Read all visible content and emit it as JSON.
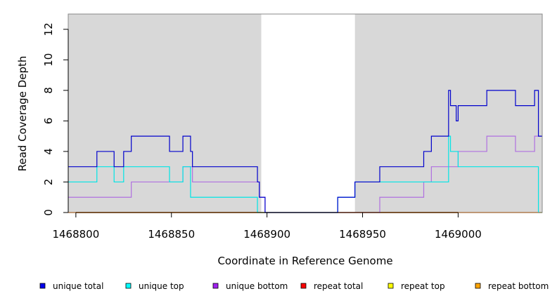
{
  "chart_data": {
    "type": "line",
    "title": "",
    "xlabel": "Coordinate in Reference Genome",
    "ylabel": "Read Coverage Depth",
    "xlim": [
      1468796,
      1469044
    ],
    "ylim": [
      0,
      13
    ],
    "x_ticks": [
      1468800,
      1468850,
      1468900,
      1468950,
      1469000
    ],
    "x_tick_labels": [
      "1468800",
      "1468850",
      "1468900",
      "1468950",
      "1469000"
    ],
    "y_ticks": [
      0,
      2,
      4,
      6,
      8,
      10,
      12
    ],
    "y_tick_labels": [
      "0",
      "2",
      "4",
      "6",
      "8",
      "10",
      "12"
    ],
    "shaded_regions": [
      [
        1468796,
        1468897
      ],
      [
        1468946,
        1469044
      ]
    ],
    "legend_position": "bottom",
    "series": [
      {
        "name": "unique total",
        "color": "#0000cc",
        "steps": [
          [
            1468796,
            3
          ],
          [
            1468811,
            4
          ],
          [
            1468820,
            3
          ],
          [
            1468825,
            4
          ],
          [
            1468829,
            5
          ],
          [
            1468849,
            4
          ],
          [
            1468856,
            5
          ],
          [
            1468860,
            4
          ],
          [
            1468861,
            3
          ],
          [
            1468895,
            2
          ],
          [
            1468896,
            1
          ],
          [
            1468899,
            0
          ],
          [
            1468937,
            1
          ],
          [
            1468946,
            2
          ],
          [
            1468959,
            3
          ],
          [
            1468982,
            4
          ],
          [
            1468986,
            5
          ],
          [
            1468995,
            8
          ],
          [
            1468996,
            7
          ],
          [
            1468999,
            6
          ],
          [
            1469000,
            7
          ],
          [
            1469015,
            8
          ],
          [
            1469030,
            7
          ],
          [
            1469040,
            8
          ],
          [
            1469042,
            5
          ],
          [
            1469044,
            5
          ]
        ]
      },
      {
        "name": "unique top",
        "color": "#00e5e5",
        "steps": [
          [
            1468796,
            2
          ],
          [
            1468811,
            3
          ],
          [
            1468820,
            2
          ],
          [
            1468825,
            3
          ],
          [
            1468849,
            2
          ],
          [
            1468856,
            3
          ],
          [
            1468860,
            1
          ],
          [
            1468895,
            0
          ],
          [
            1468937,
            1
          ],
          [
            1468946,
            2
          ],
          [
            1468995,
            5
          ],
          [
            1468996,
            4
          ],
          [
            1469000,
            3
          ],
          [
            1469042,
            0
          ],
          [
            1469044,
            0
          ]
        ]
      },
      {
        "name": "unique bottom",
        "color": "#b070e0",
        "steps": [
          [
            1468796,
            1
          ],
          [
            1468829,
            2
          ],
          [
            1468856,
            3
          ],
          [
            1468861,
            2
          ],
          [
            1468896,
            1
          ],
          [
            1468899,
            0
          ],
          [
            1468959,
            1
          ],
          [
            1468982,
            2
          ],
          [
            1468986,
            3
          ],
          [
            1469000,
            4
          ],
          [
            1469015,
            5
          ],
          [
            1469030,
            4
          ],
          [
            1469040,
            5
          ],
          [
            1469042,
            5
          ],
          [
            1469044,
            5
          ]
        ]
      },
      {
        "name": "repeat total",
        "color": "#ff0000",
        "steps": [
          [
            1468796,
            0
          ],
          [
            1469044,
            0
          ]
        ]
      },
      {
        "name": "repeat top",
        "color": "#ffff00",
        "steps": [
          [
            1468796,
            0
          ],
          [
            1469044,
            0
          ]
        ]
      },
      {
        "name": "repeat bottom",
        "color": "#f0a000",
        "steps": [
          [
            1468796,
            0
          ],
          [
            1469044,
            0
          ]
        ]
      }
    ]
  },
  "legend": {
    "items": [
      {
        "label": "unique total",
        "color": "#0000ee"
      },
      {
        "label": "unique top",
        "color": "#00ffff"
      },
      {
        "label": "unique bottom",
        "color": "#a020f0"
      },
      {
        "label": "repeat total",
        "color": "#ff0000"
      },
      {
        "label": "repeat top",
        "color": "#ffff00"
      },
      {
        "label": "repeat bottom",
        "color": "#ffa500"
      }
    ]
  }
}
